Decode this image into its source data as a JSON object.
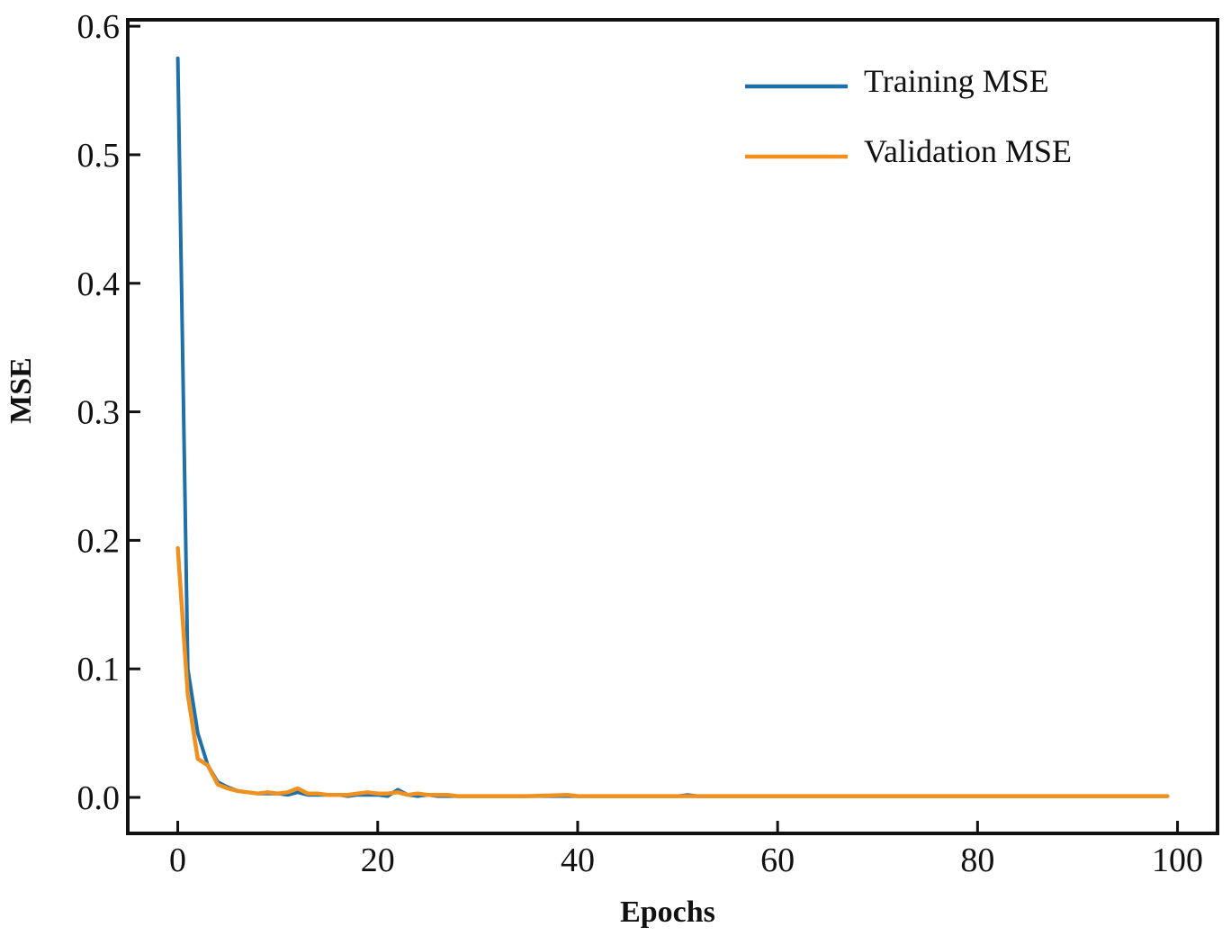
{
  "chart_data": {
    "type": "line",
    "title": "",
    "xlabel": "Epochs",
    "ylabel": "MSE",
    "xlim": [
      -5,
      104
    ],
    "ylim": [
      -0.028,
      0.605
    ],
    "xticks": [
      0,
      20,
      40,
      60,
      80,
      100
    ],
    "yticks": [
      0.0,
      0.1,
      0.2,
      0.3,
      0.4,
      0.5,
      0.6
    ],
    "xtick_labels": [
      "0",
      "20",
      "40",
      "60",
      "80",
      "100"
    ],
    "ytick_labels": [
      "0.0",
      "0.1",
      "0.2",
      "0.3",
      "0.4",
      "0.5",
      "0.6"
    ],
    "grid": false,
    "legend_position": "top-right",
    "series": [
      {
        "name": "Training MSE",
        "color": "#1f6fa8",
        "x": [
          0,
          1,
          2,
          3,
          4,
          5,
          6,
          7,
          8,
          9,
          10,
          11,
          12,
          13,
          14,
          15,
          16,
          17,
          18,
          19,
          20,
          21,
          22,
          23,
          24,
          25,
          26,
          27,
          28,
          30,
          35,
          40,
          45,
          50,
          51,
          52,
          55,
          60,
          65,
          70,
          75,
          80,
          85,
          90,
          95,
          99
        ],
        "y": [
          0.575,
          0.1,
          0.05,
          0.025,
          0.012,
          0.008,
          0.005,
          0.004,
          0.003,
          0.003,
          0.003,
          0.002,
          0.004,
          0.002,
          0.002,
          0.002,
          0.002,
          0.001,
          0.002,
          0.002,
          0.002,
          0.001,
          0.006,
          0.002,
          0.001,
          0.002,
          0.001,
          0.001,
          0.001,
          0.001,
          0.001,
          0.001,
          0.001,
          0.001,
          0.002,
          0.001,
          0.001,
          0.001,
          0.001,
          0.001,
          0.001,
          0.001,
          0.001,
          0.001,
          0.001,
          0.001
        ]
      },
      {
        "name": "Validation MSE",
        "color": "#f0901e",
        "x": [
          0,
          1,
          2,
          3,
          4,
          5,
          6,
          7,
          8,
          9,
          10,
          11,
          12,
          13,
          14,
          15,
          16,
          17,
          18,
          19,
          20,
          21,
          22,
          23,
          24,
          25,
          26,
          27,
          28,
          30,
          35,
          39,
          40,
          45,
          50,
          55,
          60,
          65,
          70,
          75,
          80,
          85,
          90,
          95,
          99
        ],
        "y": [
          0.194,
          0.08,
          0.03,
          0.025,
          0.01,
          0.007,
          0.005,
          0.004,
          0.003,
          0.004,
          0.003,
          0.004,
          0.007,
          0.003,
          0.003,
          0.002,
          0.002,
          0.002,
          0.003,
          0.004,
          0.003,
          0.003,
          0.004,
          0.002,
          0.003,
          0.002,
          0.002,
          0.002,
          0.001,
          0.001,
          0.001,
          0.002,
          0.001,
          0.001,
          0.001,
          0.001,
          0.001,
          0.001,
          0.001,
          0.001,
          0.001,
          0.001,
          0.001,
          0.001,
          0.001
        ]
      }
    ]
  }
}
